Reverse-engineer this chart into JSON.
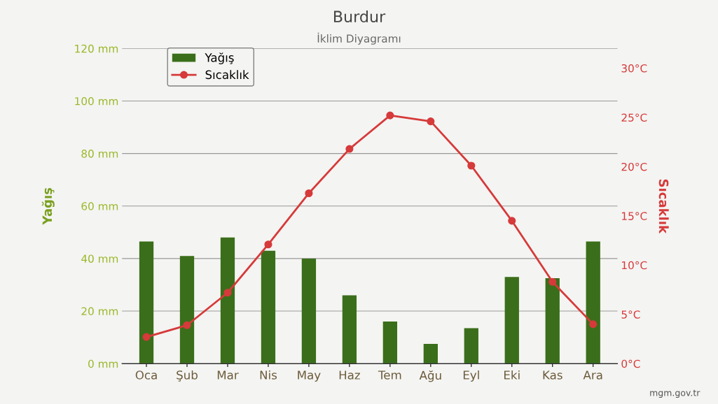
{
  "chart_data": {
    "type": "bar",
    "title": "Burdur",
    "subtitle": "İklim Diyagramı",
    "categories": [
      "Oca",
      "Şub",
      "Mar",
      "Nis",
      "May",
      "Haz",
      "Tem",
      "Ağu",
      "Eyl",
      "Eki",
      "Kas",
      "Ara"
    ],
    "series": [
      {
        "name": "Yağış",
        "color": "#3a6e1a",
        "values": [
          46.5,
          41,
          48,
          43,
          40,
          26,
          16,
          7.5,
          13.5,
          33,
          32.5,
          46.5
        ]
      },
      {
        "name": "Sıcaklık",
        "type": "line",
        "axis": "y2",
        "color": "#d63a3a",
        "values": [
          2.7,
          3.9,
          7.2,
          12.1,
          17.3,
          21.8,
          25.2,
          24.6,
          20.1,
          14.5,
          8.3,
          4.0
        ]
      }
    ],
    "ylabel": "Yağış",
    "y2label": "Sıcaklık",
    "ylim": [
      0,
      120
    ],
    "yticks": [
      {
        "value": 0,
        "label": "0 mm"
      },
      {
        "value": 20,
        "label": "20 mm"
      },
      {
        "value": 40,
        "label": "40 mm"
      },
      {
        "value": 60,
        "label": "60 mm"
      },
      {
        "value": 80,
        "label": "80 mm"
      },
      {
        "value": 100,
        "label": "100 mm"
      },
      {
        "value": 120,
        "label": "120 mm"
      }
    ],
    "y2lim": [
      0,
      32
    ],
    "y2ticks": [
      {
        "value": 0,
        "label": "0°C"
      },
      {
        "value": 5,
        "label": "5°C"
      },
      {
        "value": 10,
        "label": "10°C"
      },
      {
        "value": 15,
        "label": "15°C"
      },
      {
        "value": 20,
        "label": "20°C"
      },
      {
        "value": 25,
        "label": "25°C"
      },
      {
        "value": 30,
        "label": "30°C"
      }
    ],
    "grid": "y",
    "legend": "top left",
    "marker": "circle",
    "annotations": [
      "mgm.gov.tr"
    ]
  }
}
